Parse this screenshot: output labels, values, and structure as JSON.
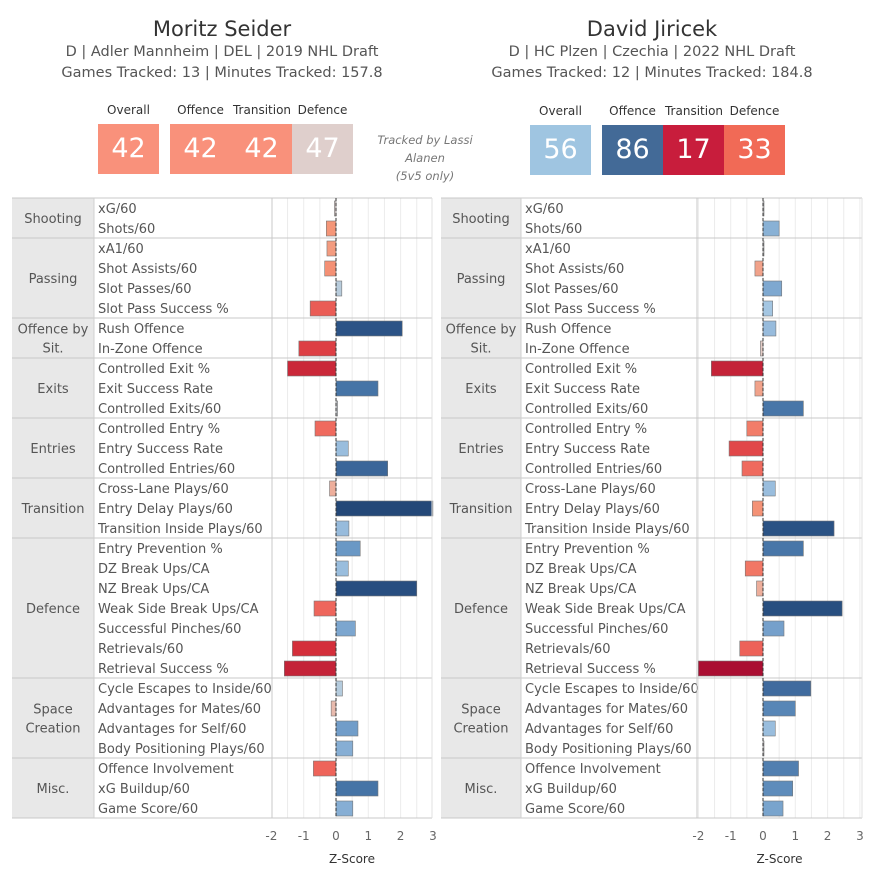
{
  "note": [
    "Tracked by Lassi Alanen",
    "(5v5 only)"
  ],
  "score_labels": {
    "overall": "Overall",
    "offence": "Offence",
    "transition": "Transition",
    "defence": "Defence"
  },
  "players": [
    {
      "name": "Moritz Seider",
      "info": "D | Adler Mannheim | DEL | 2019 NHL Draft",
      "tracking": "Games Tracked: 13 | Minutes Tracked: 157.8",
      "scores": {
        "overall": "42",
        "offence": "42",
        "transition": "42",
        "defence": "47"
      },
      "score_colors": {
        "overall": "#f9917b",
        "offence": "#f9917b",
        "transition": "#f9917b",
        "defence": "#dfcfcc"
      }
    },
    {
      "name": "David Jiricek",
      "info": "D | HC Plzen | Czechia | 2022 NHL Draft",
      "tracking": "Games Tracked: 12 | Minutes Tracked: 184.8",
      "scores": {
        "overall": "56",
        "offence": "86",
        "transition": "17",
        "defence": "33"
      },
      "score_colors": {
        "overall": "#9fc5e1",
        "offence": "#436a97",
        "transition": "#c81d3c",
        "defence": "#f16a56"
      }
    }
  ],
  "chart_data": [
    {
      "type": "bar",
      "orientation": "horizontal",
      "player": "Moritz Seider",
      "xlabel": "Z-Score",
      "xlim": [
        -2,
        3
      ],
      "xticks": [
        "-2",
        "-1",
        "0",
        "1",
        "2",
        "3"
      ],
      "groups": [
        {
          "category": "Shooting",
          "metrics": [
            "xG/60",
            "Shots/60"
          ]
        },
        {
          "category": "Passing",
          "metrics": [
            "xA1/60",
            "Shot Assists/60",
            "Slot Passes/60",
            "Slot Pass Success %"
          ]
        },
        {
          "category": "Offence by Sit.",
          "metrics": [
            "Rush Offence",
            "In-Zone Offence"
          ]
        },
        {
          "category": "Exits",
          "metrics": [
            "Controlled Exit %",
            "Exit Success Rate",
            "Controlled Exits/60"
          ]
        },
        {
          "category": "Entries",
          "metrics": [
            "Controlled Entry %",
            "Entry Success Rate",
            "Controlled Entries/60"
          ]
        },
        {
          "category": "Transition",
          "metrics": [
            "Cross-Lane Plays/60",
            "Entry Delay Plays/60",
            "Transition Inside Plays/60"
          ]
        },
        {
          "category": "Defence",
          "metrics": [
            "Entry Prevention %",
            "DZ Break Ups/CA",
            "NZ Break Ups/CA",
            "Weak Side Break Ups/CA",
            "Successful Pinches/60",
            "Retrievals/60",
            "Retrieval Success %"
          ]
        },
        {
          "category": "Space Creation",
          "metrics": [
            "Cycle Escapes to Inside/60",
            "Advantages for Mates/60",
            "Advantages for Self/60",
            "Body Positioning Plays/60"
          ]
        },
        {
          "category": "Misc.",
          "metrics": [
            "Offence Involvement",
            "xG Buildup/60",
            "Game Score/60"
          ]
        }
      ],
      "values": [
        -0.05,
        -0.3,
        -0.28,
        -0.35,
        0.18,
        -0.8,
        2.05,
        -1.15,
        -1.5,
        1.3,
        0.05,
        -0.65,
        0.38,
        1.6,
        -0.2,
        3.0,
        0.4,
        0.75,
        0.38,
        2.5,
        -0.68,
        0.6,
        -1.35,
        -1.6,
        0.2,
        -0.15,
        0.68,
        0.52,
        -0.7,
        1.3,
        0.52
      ]
    },
    {
      "type": "bar",
      "orientation": "horizontal",
      "player": "David Jiricek",
      "xlabel": "Z-Score",
      "xlim": [
        -2,
        3
      ],
      "xticks": [
        "-2",
        "-1",
        "0",
        "1",
        "2",
        "3"
      ],
      "groups": [
        {
          "category": "Shooting",
          "metrics": [
            "xG/60",
            "Shots/60"
          ]
        },
        {
          "category": "Passing",
          "metrics": [
            "xA1/60",
            "Shot Assists/60",
            "Slot Passes/60",
            "Slot Pass Success %"
          ]
        },
        {
          "category": "Offence by Sit.",
          "metrics": [
            "Rush Offence",
            "In-Zone Offence"
          ]
        },
        {
          "category": "Exits",
          "metrics": [
            "Controlled Exit %",
            "Exit Success Rate",
            "Controlled Exits/60"
          ]
        },
        {
          "category": "Entries",
          "metrics": [
            "Controlled Entry %",
            "Entry Success Rate",
            "Controlled Entries/60"
          ]
        },
        {
          "category": "Transition",
          "metrics": [
            "Cross-Lane Plays/60",
            "Entry Delay Plays/60",
            "Transition Inside Plays/60"
          ]
        },
        {
          "category": "Defence",
          "metrics": [
            "Entry Prevention %",
            "DZ Break Ups/CA",
            "NZ Break Ups/CA",
            "Weak Side Break Ups/CA",
            "Successful Pinches/60",
            "Retrievals/60",
            "Retrieval Success %"
          ]
        },
        {
          "category": "Space Creation",
          "metrics": [
            "Cycle Escapes to Inside/60",
            "Advantages for Mates/60",
            "Advantages for Self/60",
            "Body Positioning Plays/60"
          ]
        },
        {
          "category": "Misc.",
          "metrics": [
            "Offence Involvement",
            "xG Buildup/60",
            "Game Score/60"
          ]
        }
      ],
      "values": [
        0.03,
        0.5,
        0.02,
        -0.25,
        0.58,
        0.3,
        0.4,
        -0.08,
        -1.6,
        -0.25,
        1.25,
        -0.5,
        -1.05,
        -0.65,
        0.38,
        -0.33,
        2.2,
        1.25,
        -0.55,
        -0.2,
        2.45,
        0.65,
        -0.72,
        -2.0,
        1.48,
        1.0,
        0.38,
        0.01,
        1.1,
        0.92,
        0.62
      ]
    }
  ]
}
